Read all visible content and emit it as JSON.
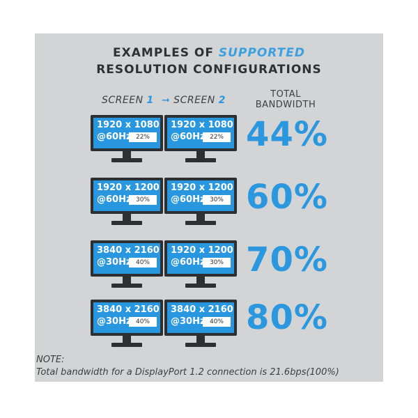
{
  "header": {
    "line1_prefix": "EXAMPLES OF ",
    "line1_highlight": "SUPPORTED",
    "line2": "RESOLUTION CONFIGURATIONS"
  },
  "columns": {
    "screen1_label": "SCREEN ",
    "screen1_num": "1",
    "arrow": "➞",
    "screen2_label": " SCREEN ",
    "screen2_num": "2",
    "total_line1": "TOTAL",
    "total_line2": "BANDWIDTH"
  },
  "rows": [
    {
      "screen1": {
        "resolution": "1920 x 1080",
        "refresh": "@60Hz",
        "percent": "22%"
      },
      "screen2": {
        "resolution": "1920 x 1080",
        "refresh": "@60Hz",
        "percent": "22%"
      },
      "total": "44%"
    },
    {
      "screen1": {
        "resolution": "1920 x 1200",
        "refresh": "@60Hz",
        "percent": "30%"
      },
      "screen2": {
        "resolution": "1920 x 1200",
        "refresh": "@60Hz",
        "percent": "30%"
      },
      "total": "60%"
    },
    {
      "screen1": {
        "resolution": "3840 x 2160",
        "refresh": "@30Hz",
        "percent": "40%"
      },
      "screen2": {
        "resolution": "1920 x 1200",
        "refresh": "@60Hz",
        "percent": "30%"
      },
      "total": "70%"
    },
    {
      "screen1": {
        "resolution": "3840 x 2160",
        "refresh": "@30Hz",
        "percent": "40%"
      },
      "screen2": {
        "resolution": "3840 x 2160",
        "refresh": "@30Hz",
        "percent": "40%"
      },
      "total": "80%"
    }
  ],
  "note": {
    "label": "NOTE:",
    "text": "Total bandwidth for a DisplayPort 1.2 connection is 21.6bps(100%)"
  },
  "colors": {
    "accent": "#2a97de",
    "panel": "#d3d4d6",
    "monitor": "#2e2f31"
  }
}
